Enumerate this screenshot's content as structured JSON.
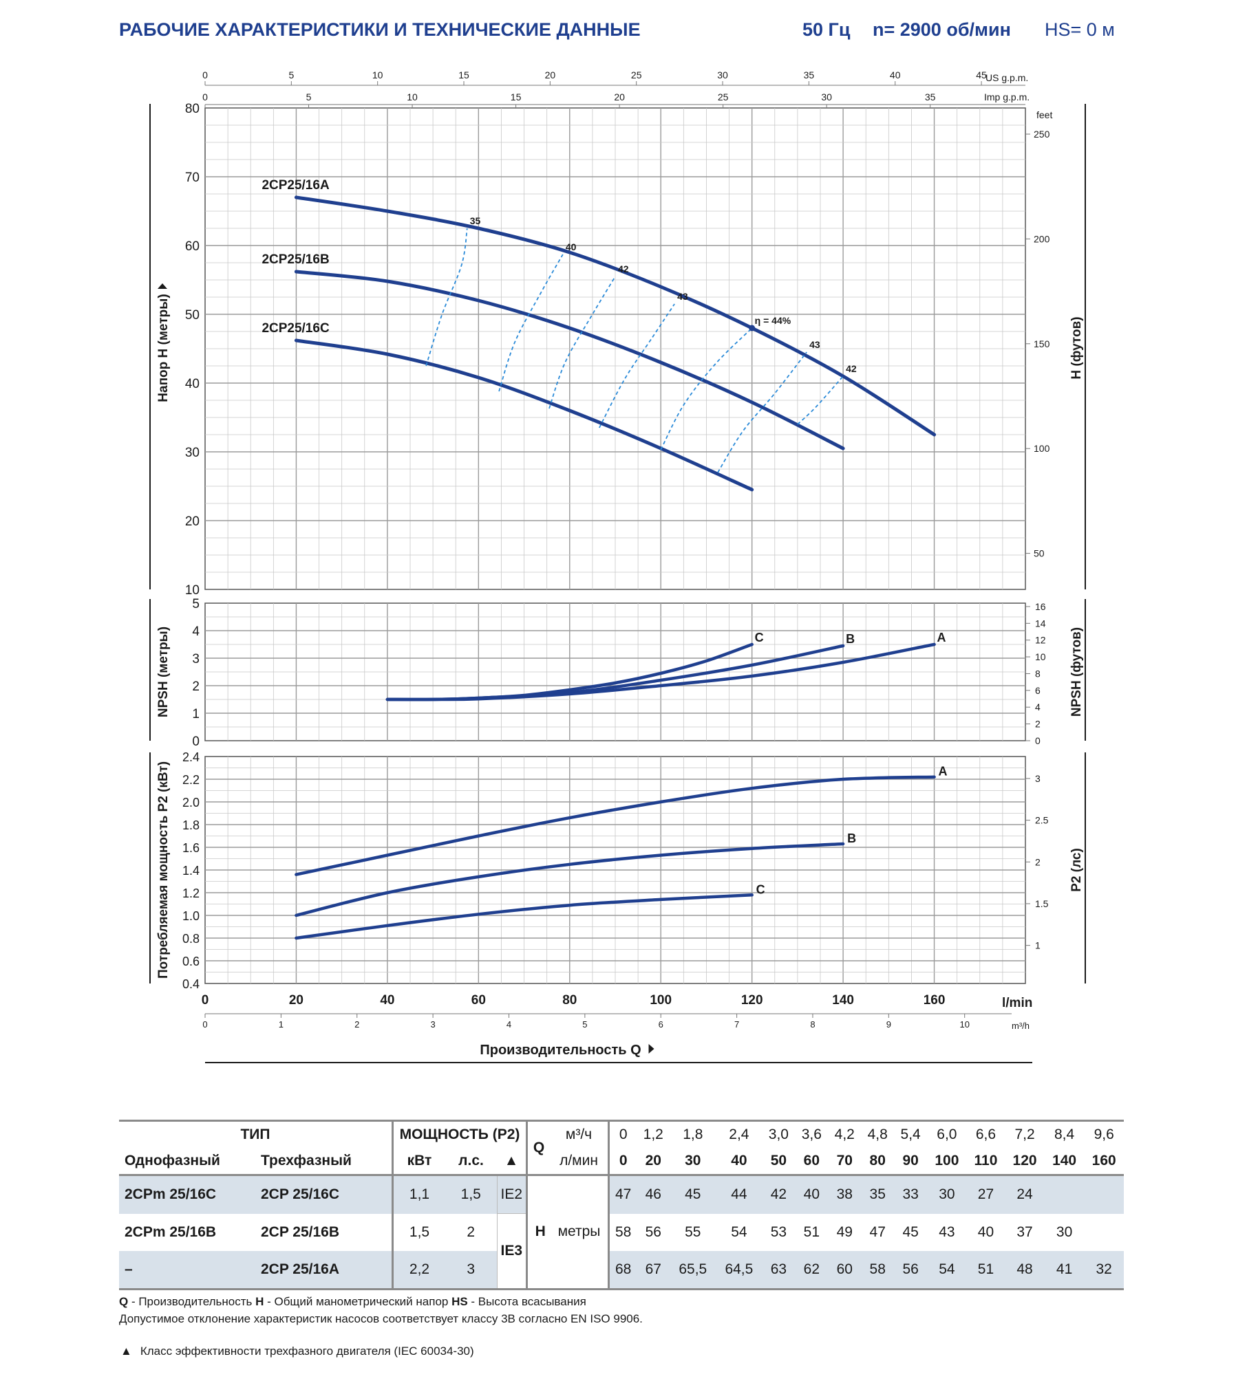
{
  "header": {
    "title": "РАБОЧИЕ ХАРАКТЕРИСТИКИ И ТЕХНИЧЕСКИЕ ДАННЫЕ",
    "freq": "50 Гц",
    "speed": "n= 2900 об/мин",
    "hs": "HS= 0 м"
  },
  "colors": {
    "curve": "#1f3f8f",
    "efficiency": "#2a8ad8",
    "grid": "#c8c8c8",
    "title": "#1f3f8f"
  },
  "axes": {
    "us_gpm_label": "US g.p.m.",
    "imp_gpm_label": "Imp g.p.m.",
    "feet_label": "feet",
    "lmin_label": "l/min",
    "m3h_label": "m³/h",
    "head_label": "Напор H (метры)",
    "head_ft_label": "H (футов)",
    "npsh_label": "NPSH (метры)",
    "npsh_ft_label": "NPSH (футов)",
    "power_label": "Потребляемая мощность P2 (кВт)",
    "power_hp_label": "P2 (лс)",
    "flow_label": "Производительность Q",
    "us_gpm_ticks": [
      0,
      5,
      10,
      15,
      20,
      25,
      30,
      35,
      40,
      45
    ],
    "imp_gpm_ticks": [
      0,
      5,
      10,
      15,
      20,
      25,
      30,
      35
    ],
    "lmin_ticks": [
      0,
      20,
      40,
      60,
      80,
      100,
      120,
      140,
      160
    ],
    "m3h_ticks": [
      0,
      1,
      2,
      3,
      4,
      5,
      6,
      7,
      8,
      9,
      10
    ],
    "head_ticks": [
      10,
      20,
      30,
      40,
      50,
      60,
      70,
      80
    ],
    "feet_ticks": [
      50,
      100,
      150,
      200,
      250
    ],
    "npsh_ticks": [
      0,
      1,
      2,
      3,
      4,
      5
    ],
    "npsh_ft_ticks": [
      0,
      2,
      4,
      6,
      8,
      10,
      12,
      14,
      16
    ],
    "power_ticks": [
      "0.4",
      "0.6",
      "0.8",
      "1.0",
      "1.2",
      "1.4",
      "1.6",
      "1.8",
      "2.0",
      "2.2",
      "2.4"
    ],
    "hp_ticks": [
      "1",
      "1.5",
      "2",
      "2.5",
      "3"
    ]
  },
  "chart_data": [
    {
      "type": "line",
      "title": "",
      "xlabel": "Производительность Q",
      "ylabel": "Напор H (метры)",
      "xlim": [
        0,
        180
      ],
      "ylim": [
        10,
        80
      ],
      "grid": true,
      "series": [
        {
          "name": "2CP25/16A",
          "x": [
            20,
            40,
            60,
            80,
            100,
            120,
            140,
            160
          ],
          "y": [
            67,
            65,
            62.5,
            59,
            54,
            48,
            41,
            32.5
          ]
        },
        {
          "name": "2CP25/16B",
          "x": [
            20,
            40,
            60,
            80,
            100,
            120,
            140
          ],
          "y": [
            56.2,
            54.8,
            52,
            48,
            43,
            37.2,
            30.5
          ]
        },
        {
          "name": "2CP25/16C",
          "x": [
            20,
            40,
            60,
            80,
            100,
            120
          ],
          "y": [
            46.2,
            44.2,
            40.8,
            36,
            30.5,
            24.5
          ]
        }
      ],
      "efficiency_lines": [
        {
          "label": "35",
          "points": [
            [
              48.5,
              42.5
            ],
            [
              52,
              50
            ],
            [
              56.3,
              57.2
            ],
            [
              57.5,
              62.5
            ]
          ]
        },
        {
          "label": "40",
          "points": [
            [
              64.5,
              38.8
            ],
            [
              68,
              46
            ],
            [
              74,
              53.5
            ],
            [
              78.5,
              58.7
            ]
          ]
        },
        {
          "label": "42",
          "points": [
            [
              75.5,
              36.3
            ],
            [
              79,
              43
            ],
            [
              85,
              50
            ],
            [
              90,
              55.5
            ]
          ]
        },
        {
          "label": "43",
          "points": [
            [
              86.5,
              33.5
            ],
            [
              92,
              40.5
            ],
            [
              98,
              46.5
            ],
            [
              103,
              51.5
            ]
          ]
        },
        {
          "label": "η = 44%",
          "points": [
            [
              100,
              30.3
            ],
            [
              105,
              36.8
            ],
            [
              112,
              42.8
            ],
            [
              120,
              48
            ]
          ]
        },
        {
          "label": "43",
          "points": [
            [
              112.5,
              27
            ],
            [
              118,
              33
            ],
            [
              125,
              38.5
            ],
            [
              132,
              44.5
            ]
          ]
        },
        {
          "label": "42",
          "points": [
            [
              130,
              34
            ],
            [
              134,
              36.5
            ],
            [
              140,
              41
            ]
          ]
        }
      ],
      "best_point": {
        "x": 120,
        "y": 48
      }
    },
    {
      "type": "line",
      "ylabel": "NPSH (метры)",
      "xlim": [
        0,
        180
      ],
      "ylim": [
        0,
        5
      ],
      "grid": true,
      "series": [
        {
          "name": "C",
          "x": [
            40,
            50,
            60,
            70,
            80,
            90,
            100,
            110,
            120
          ],
          "y": [
            1.5,
            1.5,
            1.55,
            1.65,
            1.85,
            2.1,
            2.45,
            2.9,
            3.5
          ]
        },
        {
          "name": "B",
          "x": [
            40,
            50,
            60,
            80,
            100,
            120,
            140
          ],
          "y": [
            1.5,
            1.5,
            1.55,
            1.75,
            2.2,
            2.75,
            3.45
          ]
        },
        {
          "name": "A",
          "x": [
            40,
            50,
            60,
            80,
            100,
            120,
            140,
            160
          ],
          "y": [
            1.5,
            1.5,
            1.52,
            1.7,
            2.0,
            2.35,
            2.85,
            3.5
          ]
        }
      ]
    },
    {
      "type": "line",
      "ylabel": "Потребляемая мощность P2 (кВт)",
      "xlim": [
        0,
        180
      ],
      "ylim": [
        0.4,
        2.4
      ],
      "grid": true,
      "series": [
        {
          "name": "A",
          "x": [
            20,
            40,
            60,
            80,
            100,
            120,
            140,
            160
          ],
          "y": [
            1.36,
            1.53,
            1.7,
            1.86,
            2.0,
            2.12,
            2.2,
            2.22
          ]
        },
        {
          "name": "B",
          "x": [
            20,
            40,
            60,
            80,
            100,
            120,
            140
          ],
          "y": [
            1.0,
            1.2,
            1.34,
            1.45,
            1.53,
            1.59,
            1.63
          ]
        },
        {
          "name": "C",
          "x": [
            20,
            40,
            60,
            80,
            100,
            120
          ],
          "y": [
            0.8,
            0.91,
            1.01,
            1.09,
            1.14,
            1.18
          ]
        }
      ]
    },
    {
      "type": "table",
      "headers": {
        "type": "ТИП",
        "single": "Однофазный",
        "three": "Трехфазный",
        "power": "МОЩНОСТЬ (P2)",
        "kw": "кВт",
        "hp": "л.с.",
        "tri": "▲",
        "q": "Q",
        "m3h_unit": "м³/ч",
        "lmin_unit": "л/мин",
        "h": "H",
        "h_unit": "метры",
        "ie2": "IE2",
        "ie3": "IE3"
      },
      "q_m3h": [
        "0",
        "1,2",
        "1,8",
        "2,4",
        "3,0",
        "3,6",
        "4,2",
        "4,8",
        "5,4",
        "6,0",
        "6,6",
        "7,2",
        "8,4",
        "9,6"
      ],
      "q_lmin": [
        "0",
        "20",
        "30",
        "40",
        "50",
        "60",
        "70",
        "80",
        "90",
        "100",
        "110",
        "120",
        "140",
        "160"
      ],
      "rows": [
        {
          "single": "2CPm 25/16C",
          "three": "2CP 25/16C",
          "kw": "1,1",
          "hp": "1,5",
          "h": [
            "47",
            "46",
            "45",
            "44",
            "42",
            "40",
            "38",
            "35",
            "33",
            "30",
            "27",
            "24",
            "",
            ""
          ]
        },
        {
          "single": "2CPm 25/16B",
          "three": "2CP 25/16B",
          "kw": "1,5",
          "hp": "2",
          "h": [
            "58",
            "56",
            "55",
            "54",
            "53",
            "51",
            "49",
            "47",
            "45",
            "43",
            "40",
            "37",
            "30",
            ""
          ]
        },
        {
          "single": "–",
          "three": "2CP 25/16A",
          "kw": "2,2",
          "hp": "3",
          "h": [
            "68",
            "67",
            "65,5",
            "64,5",
            "63",
            "62",
            "60",
            "58",
            "56",
            "54",
            "51",
            "48",
            "41",
            "32"
          ]
        }
      ]
    }
  ],
  "notes": {
    "q_key": "Q",
    "q_text": " - Производительность  ",
    "h_key": "H",
    "h_text": " - Общий манометрический напор  ",
    "hs_key": "HS",
    "hs_text": " - Высота всасывания",
    "tolerance": "Допустимое отклонение характеристик насосов соответствует классу 3B согласно EN ISO 9906.",
    "tri": "▲",
    "efficiency_class": "Класс эффективности трехфазного двигателя (IEC 60034-30)"
  }
}
